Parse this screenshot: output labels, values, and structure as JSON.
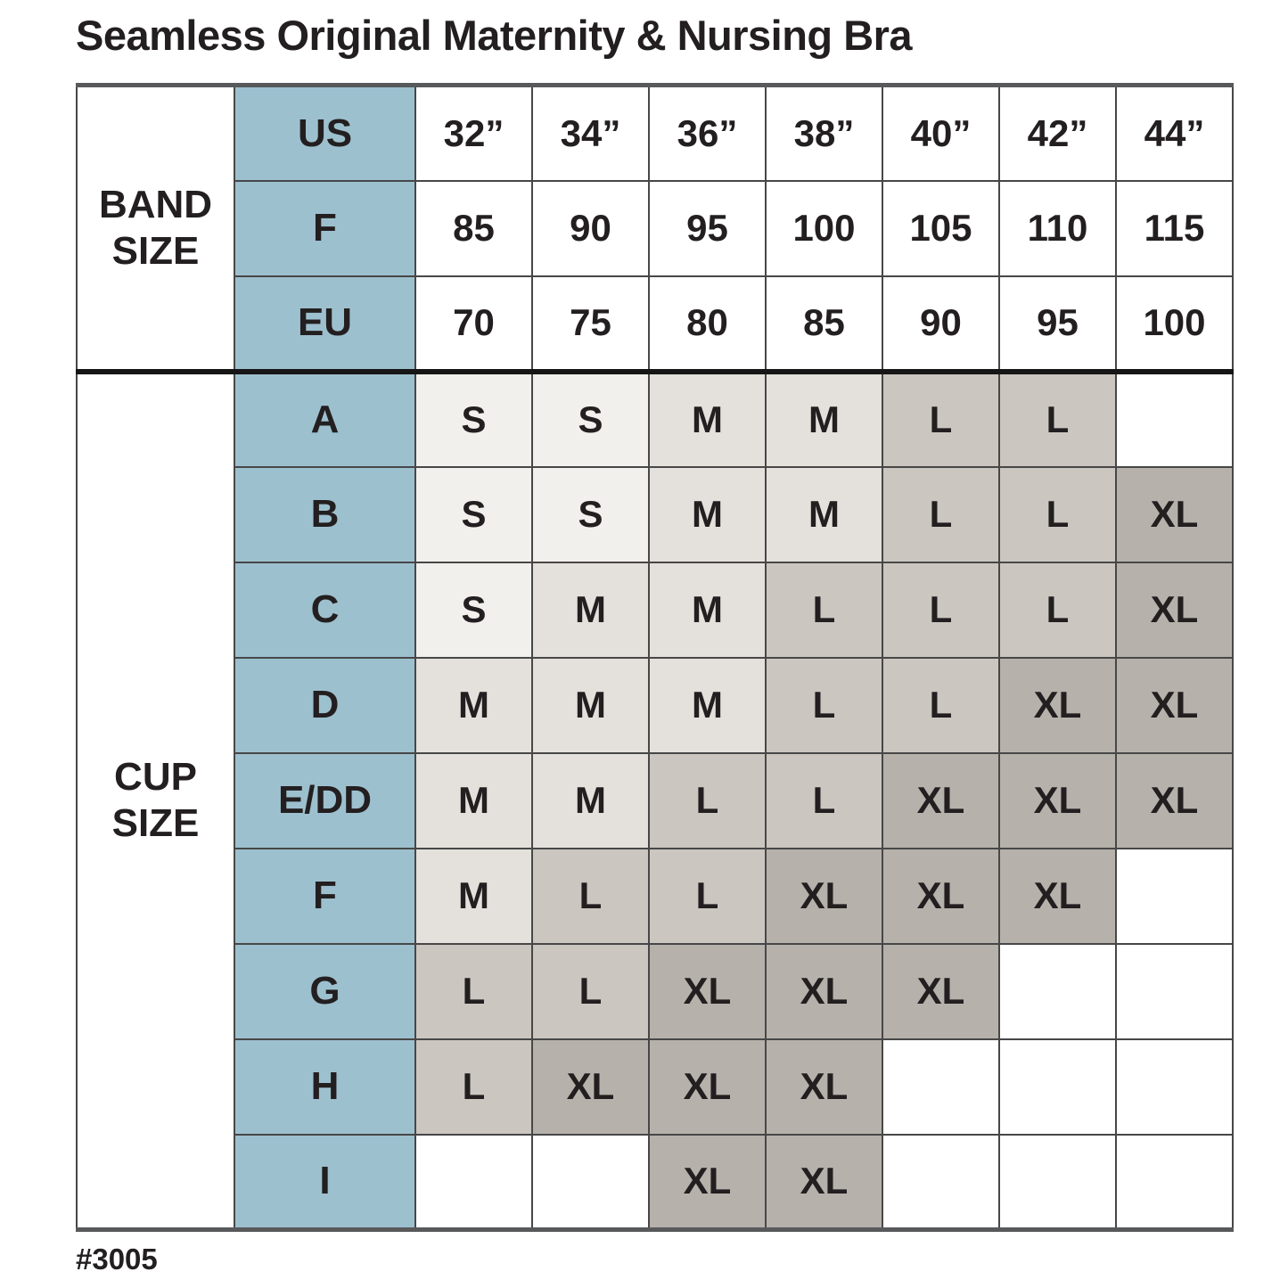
{
  "title": "Seamless Original Maternity & Nursing Bra",
  "footnote": "#3005",
  "colors": {
    "header_blue": "#9dc0ce",
    "header_text_navy": "#1d3240",
    "shade_s": "#f2f0ec",
    "shade_m": "#e4e1dc",
    "shade_l": "#cbc6c0",
    "shade_xl": "#b6b1ab",
    "shade_empty": "#ffffff",
    "grid_line": "#474747",
    "divider_line": "#161616",
    "outer_line": "#58595b"
  },
  "chart_data": {
    "type": "table",
    "title": "Seamless Original Maternity & Nursing Bra",
    "column_unit_labels": [
      "32”",
      "34”",
      "36”",
      "38”",
      "40”",
      "42”",
      "44”"
    ],
    "band_section": {
      "label": "BAND SIZE",
      "rows": [
        {
          "label": "US",
          "values": [
            "32”",
            "34”",
            "36”",
            "38”",
            "40”",
            "42”",
            "44”"
          ]
        },
        {
          "label": "F",
          "values": [
            "85",
            "90",
            "95",
            "100",
            "105",
            "110",
            "115"
          ]
        },
        {
          "label": "EU",
          "values": [
            "70",
            "75",
            "80",
            "85",
            "90",
            "95",
            "100"
          ]
        }
      ]
    },
    "cup_section": {
      "label": "CUP SIZE",
      "rows": [
        {
          "label": "A",
          "values": [
            "S",
            "S",
            "M",
            "M",
            "L",
            "L",
            ""
          ]
        },
        {
          "label": "B",
          "values": [
            "S",
            "S",
            "M",
            "M",
            "L",
            "L",
            "XL"
          ]
        },
        {
          "label": "C",
          "values": [
            "S",
            "M",
            "M",
            "L",
            "L",
            "L",
            "XL"
          ]
        },
        {
          "label": "D",
          "values": [
            "M",
            "M",
            "M",
            "L",
            "L",
            "XL",
            "XL"
          ]
        },
        {
          "label": "E/DD",
          "values": [
            "M",
            "M",
            "L",
            "L",
            "XL",
            "XL",
            "XL"
          ]
        },
        {
          "label": "F",
          "values": [
            "M",
            "L",
            "L",
            "XL",
            "XL",
            "XL",
            ""
          ]
        },
        {
          "label": "G",
          "values": [
            "L",
            "L",
            "XL",
            "XL",
            "XL",
            "",
            ""
          ]
        },
        {
          "label": "H",
          "values": [
            "L",
            "XL",
            "XL",
            "XL",
            "",
            "",
            ""
          ]
        },
        {
          "label": "I",
          "values": [
            "",
            "",
            "XL",
            "XL",
            "",
            "",
            ""
          ]
        }
      ]
    }
  }
}
